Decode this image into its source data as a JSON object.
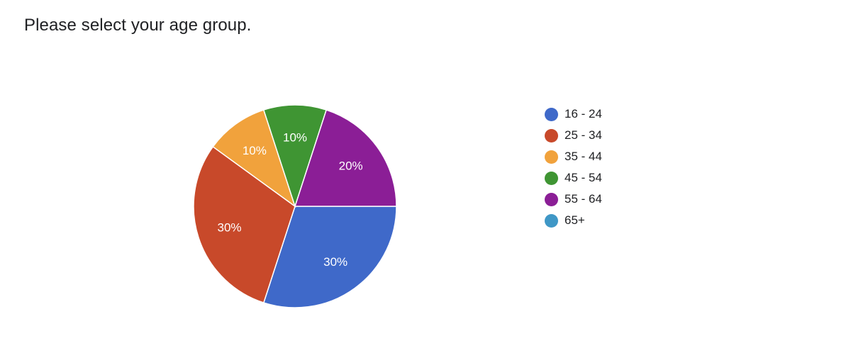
{
  "question": {
    "title": "Please select your age group."
  },
  "chart_data": {
    "type": "pie",
    "title": "",
    "legend_position": "right",
    "slices": [
      {
        "label": "16 - 24",
        "value": 30,
        "value_label": "30%",
        "color": "#3f69c9"
      },
      {
        "label": "25 - 34",
        "value": 30,
        "value_label": "30%",
        "color": "#c8492a"
      },
      {
        "label": "35 - 44",
        "value": 10,
        "value_label": "10%",
        "color": "#f1a23c"
      },
      {
        "label": "45 - 54",
        "value": 10,
        "value_label": "10%",
        "color": "#3f9533"
      },
      {
        "label": "55 - 64",
        "value": 20,
        "value_label": "20%",
        "color": "#8b1e96"
      },
      {
        "label": "65+",
        "value": 0,
        "value_label": "",
        "color": "#3f97c6"
      }
    ]
  }
}
